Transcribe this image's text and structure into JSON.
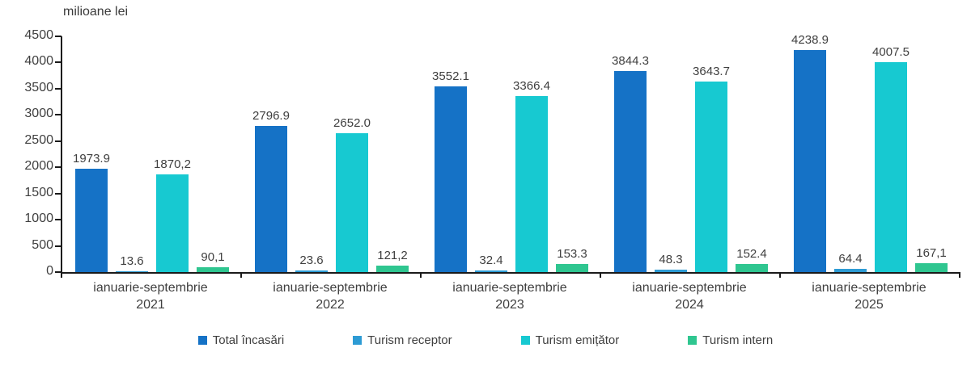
{
  "chart_data": {
    "type": "bar",
    "title": "milioane lei",
    "xlabel": "",
    "ylabel": "milioane lei",
    "ylim": [
      0,
      4500
    ],
    "ytick_step": 500,
    "yticks": [
      "0",
      "500",
      "1000",
      "1500",
      "2000",
      "2500",
      "3000",
      "3500",
      "4000",
      "4500"
    ],
    "grid": false,
    "legend_position": "bottom",
    "categories": [
      {
        "line1": "ianuarie-septembrie",
        "line2": "2021"
      },
      {
        "line1": "ianuarie-septembrie",
        "line2": "2022"
      },
      {
        "line1": "ianuarie-septembrie",
        "line2": "2023"
      },
      {
        "line1": "ianuarie-septembrie",
        "line2": "2024"
      },
      {
        "line1": "ianuarie-septembrie",
        "line2": "2025"
      }
    ],
    "series": [
      {
        "name": "Total încasări",
        "color": "#1572c6",
        "values": [
          1973.9,
          2796.9,
          3552.1,
          3844.3,
          4238.9
        ],
        "labels": [
          "1973.9",
          "2796.9",
          "3552.1",
          "3844.3",
          "4238.9"
        ]
      },
      {
        "name": "Turism receptor",
        "color": "#2d9bd4",
        "values": [
          13.6,
          23.6,
          32.4,
          48.3,
          64.4
        ],
        "labels": [
          "13.6",
          "23.6",
          "32.4",
          "48.3",
          "64.4"
        ]
      },
      {
        "name": "Turism emițător",
        "color": "#17c9d1",
        "values": [
          1870.2,
          2652.0,
          3366.4,
          3643.7,
          4007.5
        ],
        "labels": [
          "1870,2",
          "2652.0",
          "3366.4",
          "3643.7",
          "4007.5"
        ]
      },
      {
        "name": "Turism intern",
        "color": "#2fc690",
        "values": [
          90.1,
          121.2,
          153.3,
          152.4,
          167.1
        ],
        "labels": [
          "90,1",
          "121,2",
          "153.3",
          "152.4",
          "167,1"
        ]
      }
    ]
  }
}
